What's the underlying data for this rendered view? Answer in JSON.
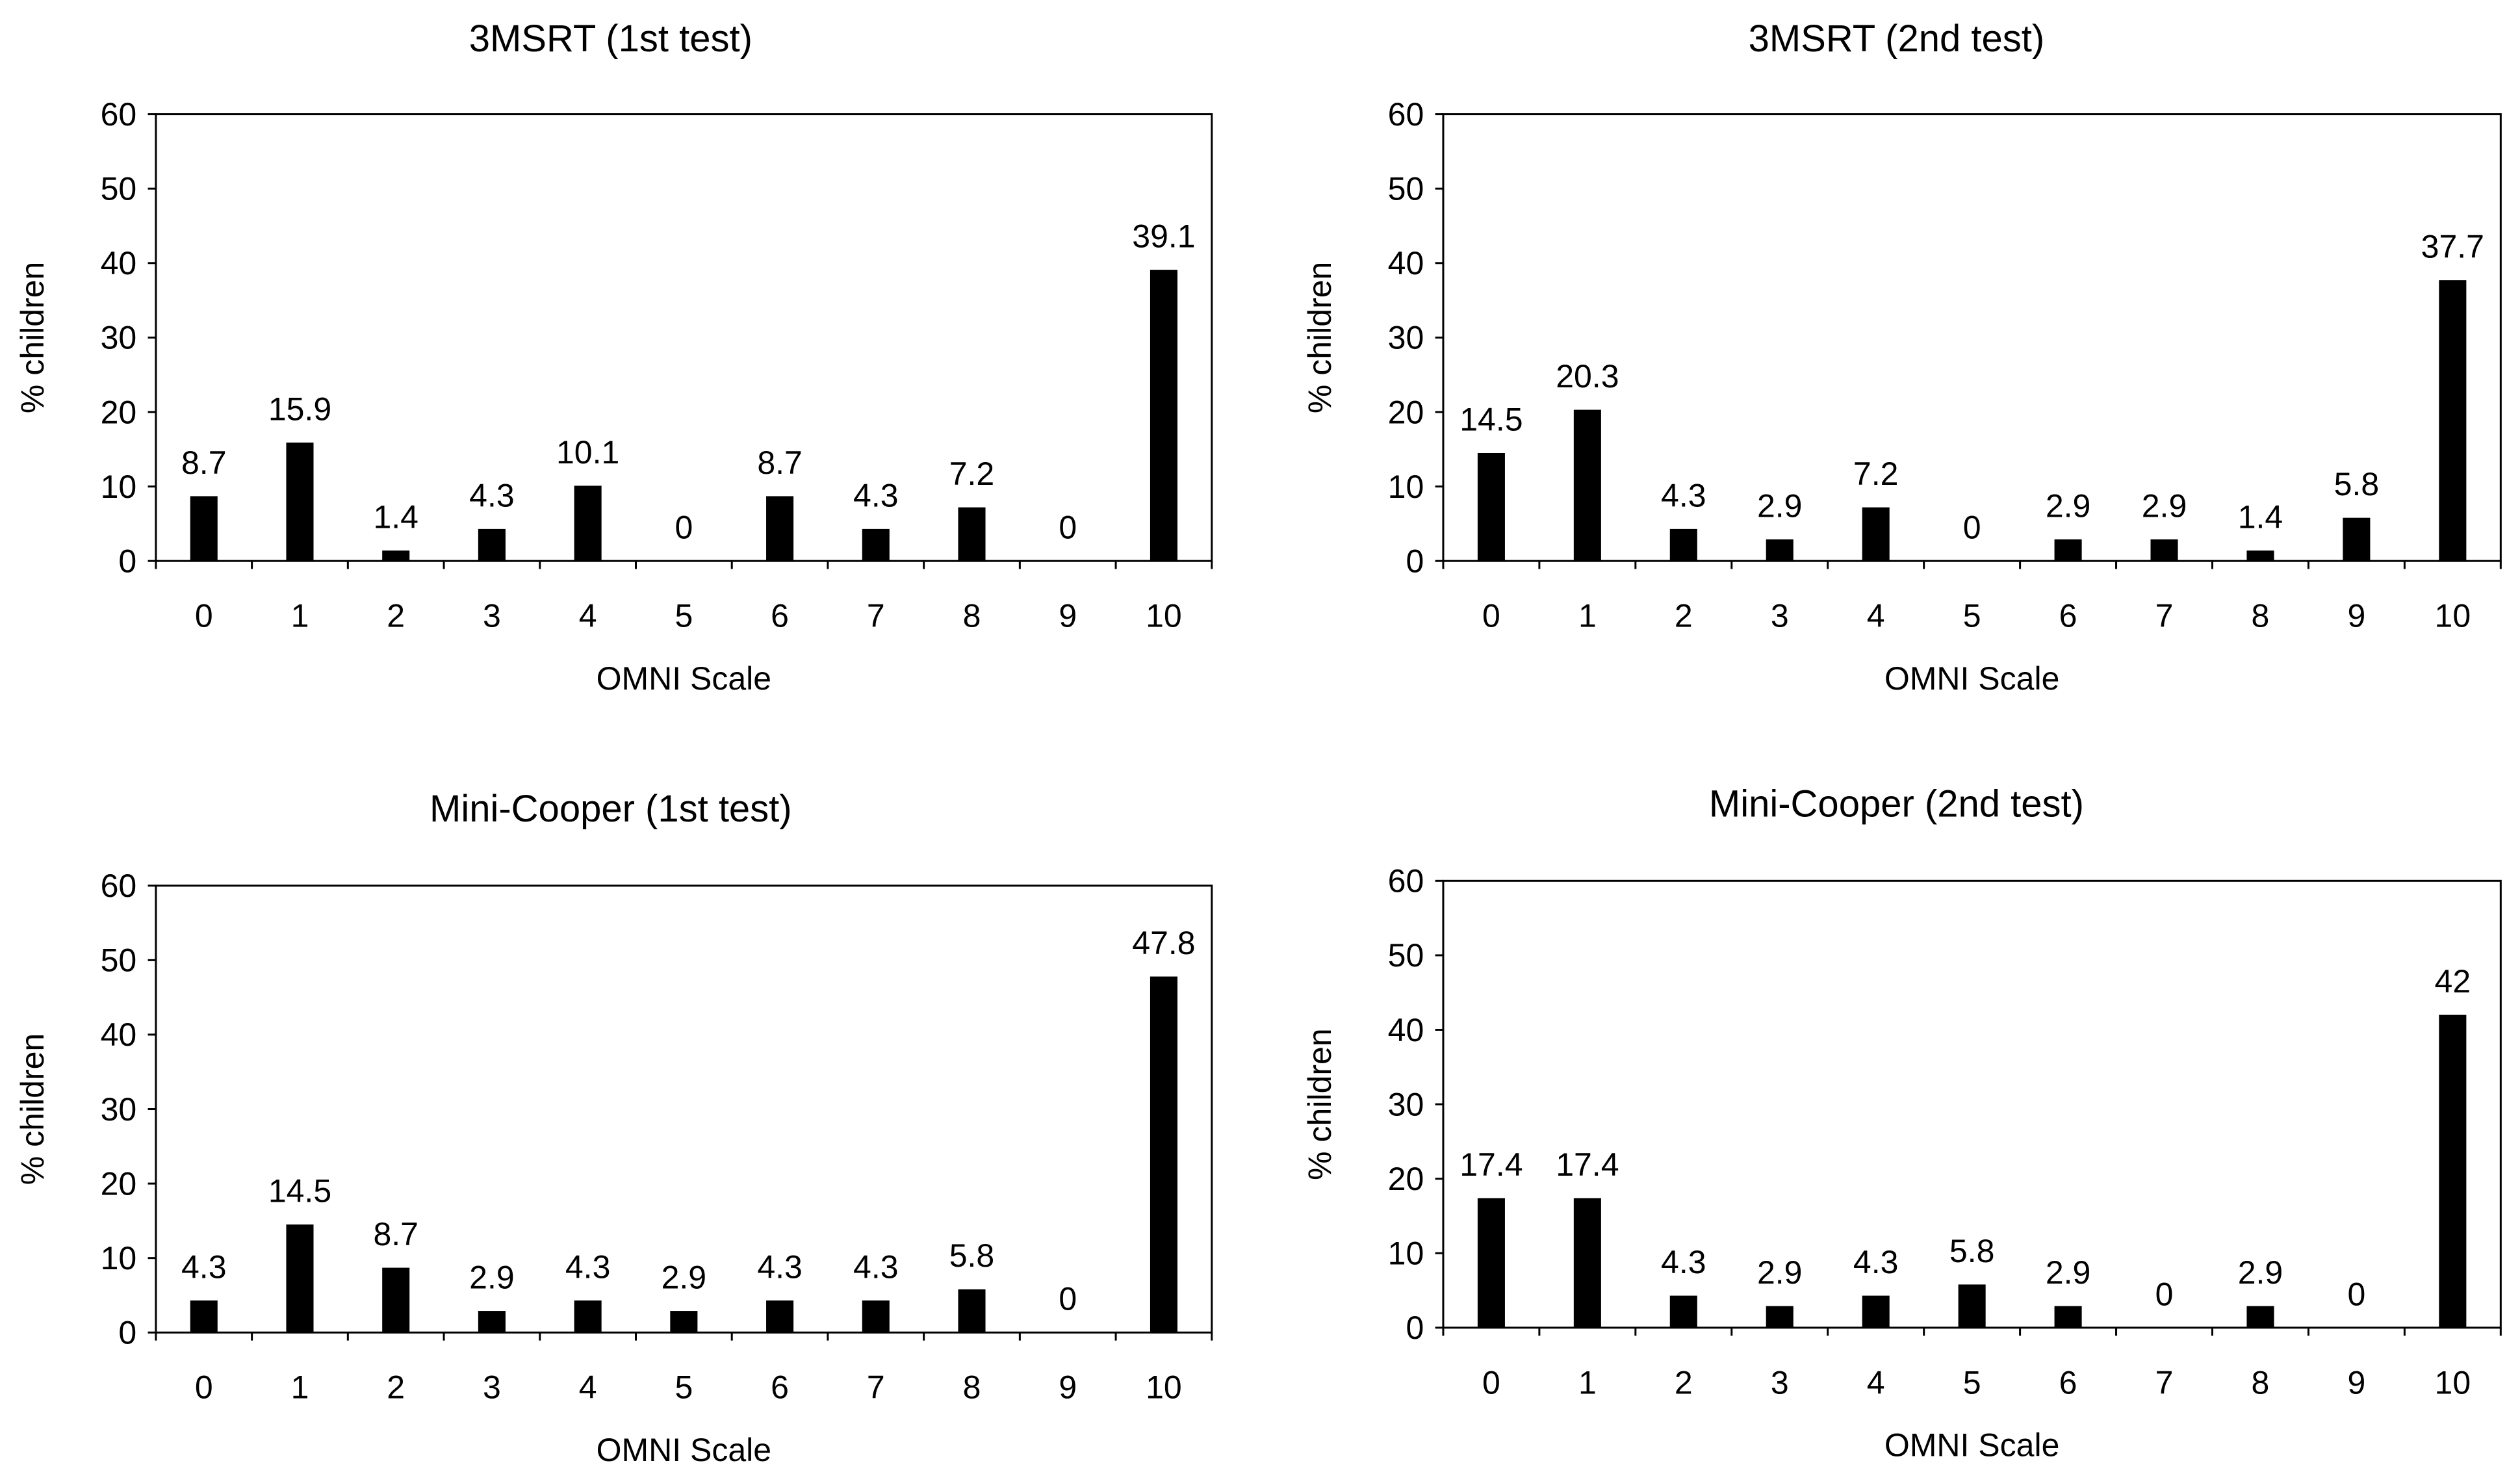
{
  "colors": {
    "bar": "#000000",
    "axis": "#000000",
    "background": "#ffffff"
  },
  "chart_data": [
    {
      "type": "bar",
      "title": "3MSRT (1st test)",
      "xlabel": "OMNI Scale",
      "ylabel": "% children",
      "categories": [
        "0",
        "1",
        "2",
        "3",
        "4",
        "5",
        "6",
        "7",
        "8",
        "9",
        "10"
      ],
      "values": [
        8.7,
        15.9,
        1.4,
        4.3,
        10.1,
        0,
        8.7,
        4.3,
        7.2,
        0,
        39.1
      ],
      "data_labels": [
        "8.7",
        "15.9",
        "1.4",
        "4.3",
        "10.1",
        "0",
        "8.7",
        "4.3",
        "7.2",
        "0",
        "39.1"
      ],
      "ylim": [
        0,
        60
      ],
      "yticks": [
        "0",
        "10",
        "20",
        "30",
        "40",
        "50",
        "60"
      ],
      "grid": false
    },
    {
      "type": "bar",
      "title": "3MSRT (2nd test)",
      "xlabel": "OMNI Scale",
      "ylabel": "% children",
      "categories": [
        "0",
        "1",
        "2",
        "3",
        "4",
        "5",
        "6",
        "7",
        "8",
        "9",
        "10"
      ],
      "values": [
        14.5,
        20.3,
        4.3,
        2.9,
        7.2,
        0,
        2.9,
        2.9,
        1.4,
        5.8,
        37.7
      ],
      "data_labels": [
        "14.5",
        "20.3",
        "4.3",
        "2.9",
        "7.2",
        "0",
        "2.9",
        "2.9",
        "1.4",
        "5.8",
        "37.7"
      ],
      "ylim": [
        0,
        60
      ],
      "yticks": [
        "0",
        "10",
        "20",
        "30",
        "40",
        "50",
        "60"
      ],
      "grid": false
    },
    {
      "type": "bar",
      "title": "Mini-Cooper (1st test)",
      "xlabel": "OMNI Scale",
      "ylabel": "% children",
      "categories": [
        "0",
        "1",
        "2",
        "3",
        "4",
        "5",
        "6",
        "7",
        "8",
        "9",
        "10"
      ],
      "values": [
        4.3,
        14.5,
        8.7,
        2.9,
        4.3,
        2.9,
        4.3,
        4.3,
        5.8,
        0,
        47.8
      ],
      "data_labels": [
        "4.3",
        "14.5",
        "8.7",
        "2.9",
        "4.3",
        "2.9",
        "4.3",
        "4.3",
        "5.8",
        "0",
        "47.8"
      ],
      "ylim": [
        0,
        60
      ],
      "yticks": [
        "0",
        "10",
        "20",
        "30",
        "40",
        "50",
        "60"
      ],
      "grid": false
    },
    {
      "type": "bar",
      "title": "Mini-Cooper (2nd test)",
      "xlabel": "OMNI Scale",
      "ylabel": "% children",
      "categories": [
        "0",
        "1",
        "2",
        "3",
        "4",
        "5",
        "6",
        "7",
        "8",
        "9",
        "10"
      ],
      "values": [
        17.4,
        17.4,
        4.3,
        2.9,
        4.3,
        5.8,
        2.9,
        0,
        2.9,
        0,
        42
      ],
      "data_labels": [
        "17.4",
        "17.4",
        "4.3",
        "2.9",
        "4.3",
        "5.8",
        "2.9",
        "0",
        "2.9",
        "0",
        "42"
      ],
      "ylim": [
        0,
        60
      ],
      "yticks": [
        "0",
        "10",
        "20",
        "30",
        "40",
        "50",
        "60"
      ],
      "grid": false
    }
  ]
}
